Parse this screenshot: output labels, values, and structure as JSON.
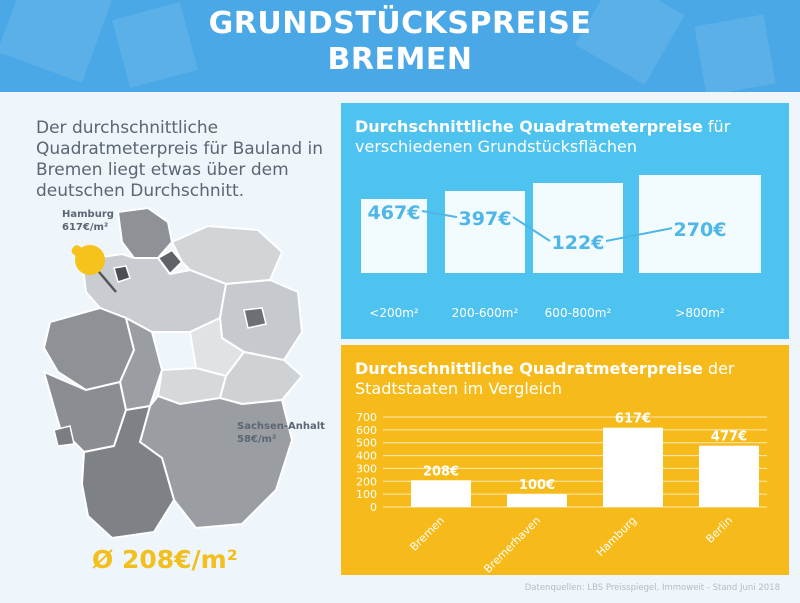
{
  "header": {
    "title_line1": "GRUNDSTÜCKSPREISE",
    "title_line2": "BREMEN"
  },
  "intro_text": "Der durchschnittliche Quadratmeterpreis für Bauland in Bremen liegt etwas über dem deutschen Durchschnitt.",
  "map": {
    "label_hamburg_name": "Hamburg",
    "label_hamburg_price": "617€/m²",
    "label_sachsen_name": "Sachsen-Anhalt",
    "label_sachsen_price": "58€/m²",
    "average": "Ø 208€/m²"
  },
  "panel_area": {
    "title_bold": "Durchschnittliche Quadratmeterpreise",
    "title_rest": " für verschiedenen Grundstücksflächen"
  },
  "panel_states": {
    "title_bold": "Durchschnittliche Quadratmeterpreise",
    "title_rest": " der Stadtstaaten im Vergleich"
  },
  "source": "Datenquellen: LBS Preisspiegel, Immoweit - Stand Juni 2018",
  "colors": {
    "header": "#4aa8e6",
    "panel_blue": "#4fc3f0",
    "panel_yellow": "#f6bb1a",
    "accent_text": "#4fb6e8",
    "pin": "#f6c21c"
  },
  "chart_data": [
    {
      "type": "line",
      "title": "Durchschnittliche Quadratmeterpreise für verschiedenen Grundstücksflächen",
      "categories": [
        "<200m²",
        "200-600m²",
        "600-800m²",
        ">800m²"
      ],
      "values": [
        467,
        397,
        122,
        270
      ],
      "labels": [
        "467€",
        "397€",
        "122€",
        "270€"
      ]
    },
    {
      "type": "bar",
      "title": "Durchschnittliche Quadratmeterpreise der Stadtstaaten im Vergleich",
      "categories": [
        "Bremen",
        "Bremerhaven",
        "Hamburg",
        "Berlin"
      ],
      "values": [
        208,
        100,
        617,
        477
      ],
      "labels": [
        "208€",
        "100€",
        "617€",
        "477€"
      ],
      "ylim": [
        0,
        700
      ],
      "yticks": [
        0,
        100,
        200,
        300,
        400,
        500,
        600,
        700
      ],
      "grid": true
    }
  ]
}
